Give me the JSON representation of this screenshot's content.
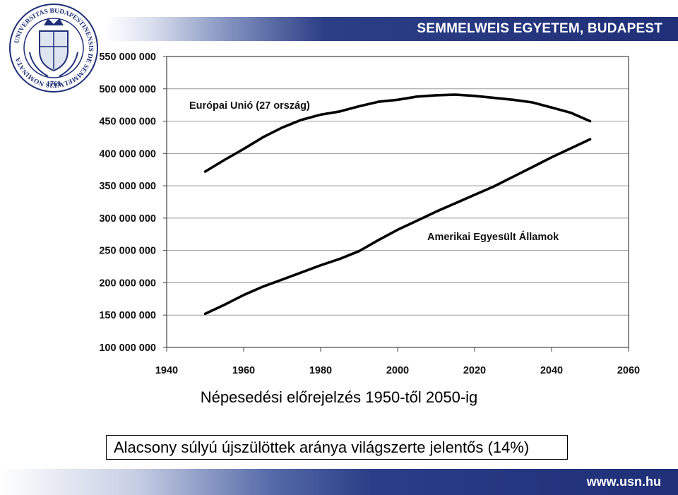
{
  "header": {
    "title": "SEMMELWEIS EGYETEM, BUDAPEST"
  },
  "logo": {
    "description_icon": "university-seal-icon",
    "text": "UNIVERSITAS BUDAPESTINENSIS DE SEMMELWEIS NOMINATA",
    "year": "1769"
  },
  "footer": {
    "url": "www.usn.hu"
  },
  "caption": "Népesedési előrejelzés 1950-től 2050-ig",
  "note": "Alacsony súlyú újszülöttek aránya világszerte jelentős (14%)",
  "colors": {
    "header_blue": "#1f2f78",
    "line": "#000000",
    "grid": "#999999"
  },
  "chart_data": {
    "type": "line",
    "title": "",
    "xlabel": "",
    "ylabel": "",
    "xlim": [
      1940,
      2060
    ],
    "ylim": [
      100000000,
      550000000
    ],
    "x_ticks": [
      "1940",
      "1960",
      "1980",
      "2000",
      "2020",
      "2040",
      "2060"
    ],
    "y_ticks": [
      "550 000 000",
      "500 000 000",
      "450 000 000",
      "400 000 000",
      "350 000 000",
      "300 000 000",
      "250 000 000",
      "200 000 000",
      "150 000 000",
      "100 000 000"
    ],
    "grid": true,
    "series": [
      {
        "name": "Európai Unió (27 ország)",
        "x": [
          1950,
          1955,
          1960,
          1965,
          1970,
          1975,
          1980,
          1985,
          1990,
          1995,
          2000,
          2005,
          2010,
          2015,
          2020,
          2025,
          2030,
          2035,
          2040,
          2045,
          2050
        ],
        "values": [
          372000000,
          390000000,
          407000000,
          425000000,
          440000000,
          452000000,
          460000000,
          465000000,
          473000000,
          480000000,
          483000000,
          488000000,
          490000000,
          491000000,
          489000000,
          486000000,
          483000000,
          479000000,
          471000000,
          463000000,
          450000000
        ]
      },
      {
        "name": "Amerikai Egyesült Államok",
        "x": [
          1950,
          1955,
          1960,
          1965,
          1970,
          1975,
          1980,
          1985,
          1990,
          1995,
          2000,
          2005,
          2010,
          2015,
          2020,
          2025,
          2030,
          2035,
          2040,
          2045,
          2050
        ],
        "values": [
          152000000,
          166000000,
          181000000,
          194000000,
          205000000,
          216000000,
          227000000,
          237000000,
          249000000,
          266000000,
          282000000,
          296000000,
          310000000,
          323000000,
          336000000,
          349000000,
          364000000,
          379000000,
          394000000,
          408000000,
          422000000
        ]
      }
    ]
  }
}
